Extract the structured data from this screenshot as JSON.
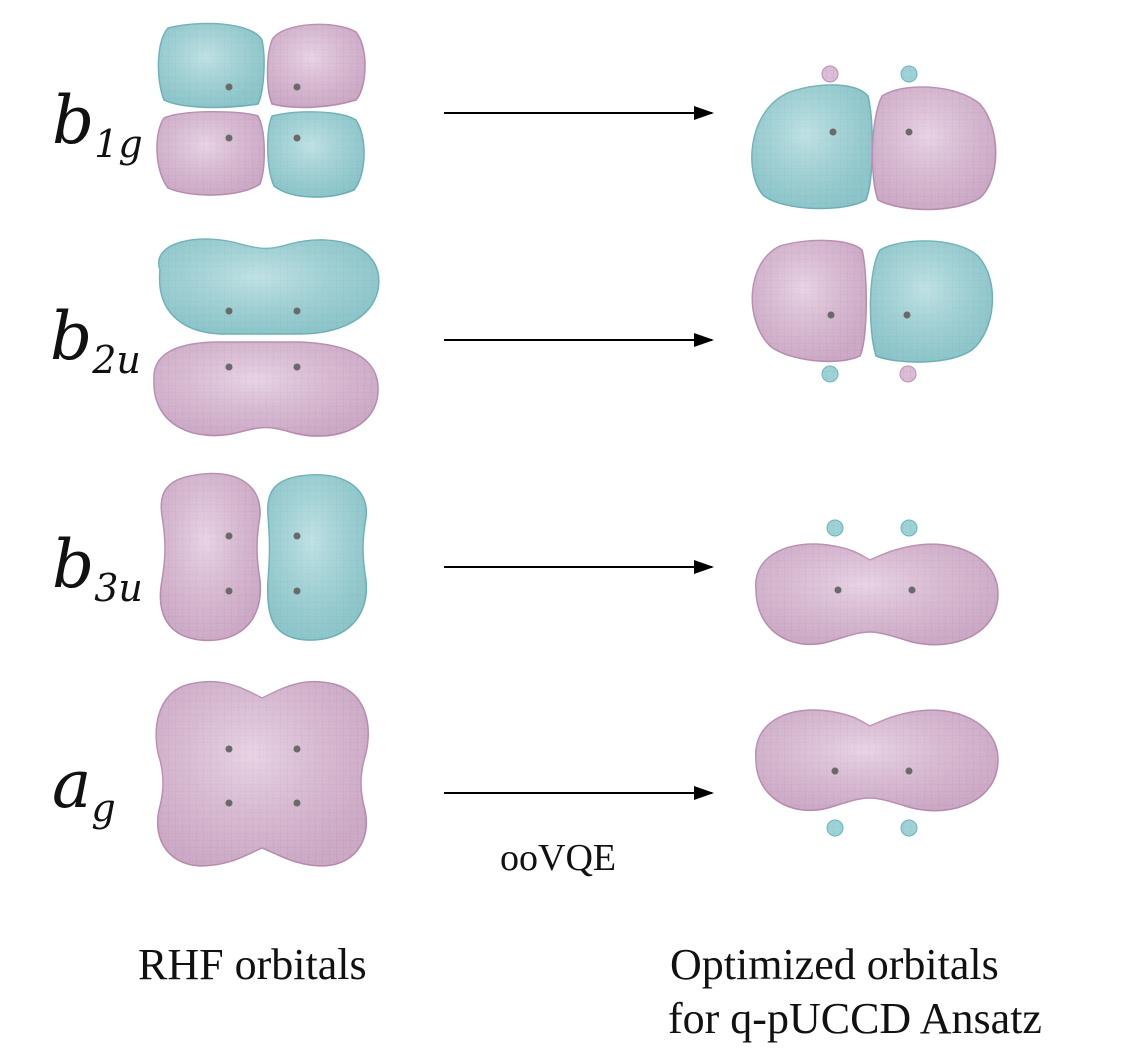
{
  "rows": [
    {
      "symbol": "b",
      "subscript": "1g"
    },
    {
      "symbol": "b",
      "subscript": "2u"
    },
    {
      "symbol": "b",
      "subscript": "3u"
    },
    {
      "symbol": "a",
      "subscript": "g"
    }
  ],
  "arrow_label": "ooVQE",
  "captions": {
    "left": "RHF orbitals",
    "right_line1": "Optimized orbitals",
    "right_line2": "for q-pUCCD Ansatz"
  },
  "colors": {
    "positive_lobe": "#9fd2d6",
    "negative_lobe": "#d6b3cf",
    "positive_lobe_edge": "#6fb3b9",
    "negative_lobe_edge": "#b98fb2",
    "atom": "#6a6a6a",
    "arrow": "#000000"
  }
}
